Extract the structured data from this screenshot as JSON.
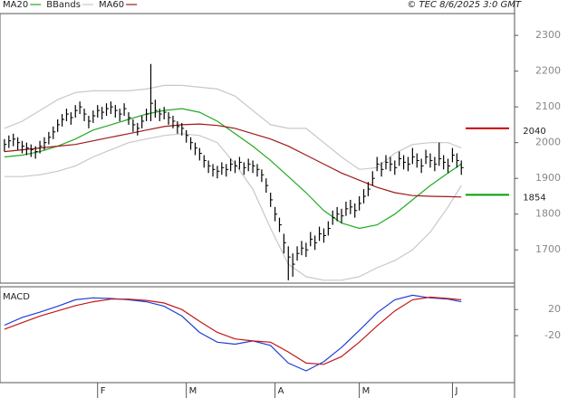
{
  "header": {
    "copyright": "© TEC 8/6/2025 3:0 GMT"
  },
  "chart_data": [
    {
      "type": "ohlc",
      "x": [
        0,
        1,
        2,
        3,
        4,
        5,
        6,
        7,
        8,
        9,
        10,
        11,
        12,
        13,
        14,
        15,
        16,
        17,
        18,
        19,
        20,
        21,
        22,
        23,
        24,
        25,
        26,
        27,
        28,
        29,
        30,
        31,
        32,
        33,
        34,
        35,
        36,
        37,
        38,
        39,
        40,
        41,
        42,
        43,
        44,
        45,
        46,
        47,
        48,
        49,
        50,
        51,
        52,
        53,
        54,
        55,
        56,
        57,
        58,
        59,
        60,
        61,
        62,
        63,
        64,
        65,
        66,
        67,
        68,
        69,
        70,
        71,
        72,
        73,
        74,
        75,
        76,
        77,
        78,
        79,
        80,
        81,
        82,
        83,
        84,
        85,
        86,
        87,
        88,
        89,
        90,
        91,
        92,
        93,
        94,
        95,
        96,
        97,
        98,
        99,
        100,
        101,
        102,
        103
      ],
      "high": [
        2010,
        2020,
        2025,
        2015,
        2005,
        2000,
        1995,
        1990,
        2005,
        2015,
        2030,
        2045,
        2065,
        2080,
        2095,
        2085,
        2105,
        2115,
        2095,
        2075,
        2090,
        2105,
        2100,
        2110,
        2115,
        2105,
        2095,
        2110,
        2085,
        2065,
        2055,
        2075,
        2095,
        2220,
        2120,
        2095,
        2100,
        2085,
        2075,
        2060,
        2055,
        2035,
        2015,
        2000,
        1985,
        1965,
        1950,
        1940,
        1935,
        1945,
        1940,
        1955,
        1950,
        1960,
        1945,
        1955,
        1950,
        1940,
        1925,
        1900,
        1860,
        1820,
        1790,
        1745,
        1710,
        1690,
        1710,
        1725,
        1720,
        1750,
        1740,
        1765,
        1760,
        1780,
        1810,
        1820,
        1815,
        1835,
        1840,
        1830,
        1850,
        1870,
        1890,
        1920,
        1960,
        1945,
        1965,
        1960,
        1950,
        1975,
        1965,
        1960,
        1985,
        1970,
        1955,
        1980,
        1970,
        1960,
        2000,
        1965,
        1955,
        1985,
        1970,
        1950
      ],
      "low": [
        1975,
        1985,
        1990,
        1980,
        1970,
        1965,
        1960,
        1955,
        1970,
        1980,
        1995,
        2010,
        2030,
        2045,
        2060,
        2050,
        2070,
        2080,
        2060,
        2040,
        2055,
        2070,
        2065,
        2075,
        2080,
        2070,
        2060,
        2075,
        2050,
        2030,
        2020,
        2040,
        2060,
        2060,
        2070,
        2060,
        2065,
        2050,
        2040,
        2025,
        2020,
        2000,
        1980,
        1965,
        1950,
        1930,
        1915,
        1905,
        1900,
        1910,
        1905,
        1920,
        1915,
        1925,
        1910,
        1920,
        1915,
        1905,
        1890,
        1860,
        1820,
        1780,
        1750,
        1690,
        1615,
        1625,
        1670,
        1685,
        1680,
        1710,
        1700,
        1725,
        1720,
        1740,
        1770,
        1780,
        1775,
        1795,
        1800,
        1790,
        1810,
        1830,
        1850,
        1880,
        1920,
        1905,
        1925,
        1920,
        1910,
        1935,
        1925,
        1920,
        1940,
        1930,
        1915,
        1940,
        1930,
        1920,
        1935,
        1925,
        1915,
        1945,
        1930,
        1910
      ],
      "close": [
        1995,
        2005,
        2010,
        2000,
        1990,
        1985,
        1980,
        1975,
        1990,
        2000,
        2015,
        2030,
        2050,
        2065,
        2080,
        2070,
        2090,
        2100,
        2080,
        2060,
        2075,
        2090,
        2085,
        2095,
        2100,
        2090,
        2080,
        2095,
        2070,
        2050,
        2040,
        2060,
        2080,
        2110,
        2090,
        2080,
        2085,
        2070,
        2060,
        2045,
        2040,
        2020,
        2000,
        1985,
        1970,
        1950,
        1935,
        1925,
        1920,
        1930,
        1925,
        1940,
        1935,
        1945,
        1930,
        1940,
        1935,
        1925,
        1910,
        1880,
        1840,
        1800,
        1770,
        1720,
        1680,
        1660,
        1690,
        1705,
        1700,
        1730,
        1720,
        1745,
        1740,
        1760,
        1790,
        1800,
        1795,
        1815,
        1820,
        1810,
        1830,
        1850,
        1870,
        1900,
        1940,
        1925,
        1945,
        1940,
        1930,
        1955,
        1945,
        1940,
        1960,
        1950,
        1935,
        1960,
        1950,
        1940,
        1955,
        1945,
        1935,
        1965,
        1950,
        1930
      ],
      "color": "#000000",
      "overlays": {
        "x": [
          0,
          4,
          8,
          12,
          16,
          20,
          24,
          28,
          32,
          36,
          40,
          44,
          48,
          52,
          56,
          60,
          64,
          68,
          72,
          76,
          80,
          84,
          88,
          92,
          96,
          100,
          103
        ],
        "series": [
          {
            "name": "MA20",
            "color": "#22aa22",
            "values": [
              1960,
              1965,
              1975,
              1990,
              2010,
              2035,
              2050,
              2065,
              2080,
              2090,
              2095,
              2085,
              2060,
              2025,
              1990,
              1950,
              1905,
              1860,
              1810,
              1775,
              1760,
              1770,
              1800,
              1840,
              1880,
              1915,
              1940
            ]
          },
          {
            "name": "BBands",
            "color": "#c8c8c8",
            "upper": [
              2040,
              2060,
              2090,
              2120,
              2140,
              2145,
              2145,
              2145,
              2150,
              2160,
              2160,
              2155,
              2150,
              2130,
              2090,
              2050,
              2040,
              2040,
              2000,
              1960,
              1925,
              1930,
              1970,
              1995,
              2000,
              2000,
              1985
            ],
            "lower": [
              1905,
              1905,
              1910,
              1920,
              1935,
              1960,
              1980,
              2000,
              2010,
              2020,
              2025,
              2020,
              2000,
              1940,
              1870,
              1760,
              1660,
              1625,
              1615,
              1615,
              1625,
              1650,
              1670,
              1700,
              1750,
              1820,
              1880
            ]
          },
          {
            "name": "MA60",
            "color": "#a01818",
            "values": [
              1975,
              1980,
              1985,
              1990,
              1995,
              2005,
              2015,
              2025,
              2035,
              2045,
              2050,
              2052,
              2048,
              2040,
              2025,
              2010,
              1990,
              1965,
              1940,
              1915,
              1895,
              1875,
              1860,
              1852,
              1850,
              1849,
              1848
            ]
          }
        ]
      },
      "annotations": [
        {
          "value": 2040,
          "label": "2040",
          "color": "#cc0000"
        },
        {
          "value": 1854,
          "label": "1854",
          "color": "#00a000"
        }
      ],
      "xlim": [
        -1,
        115
      ],
      "ylim": [
        1607,
        2361
      ],
      "yticks": [
        1700,
        1800,
        1900,
        2000,
        2100,
        2200,
        2300
      ]
    },
    {
      "type": "line",
      "title": "MACD",
      "x": [
        0,
        4,
        8,
        12,
        16,
        20,
        24,
        28,
        32,
        36,
        40,
        44,
        48,
        52,
        56,
        60,
        64,
        68,
        72,
        76,
        80,
        84,
        88,
        92,
        96,
        100,
        103
      ],
      "series": [
        {
          "color": "#1f3fd8",
          "values": [
            -4,
            8,
            16,
            25,
            35,
            38,
            37,
            35,
            32,
            25,
            10,
            -15,
            -30,
            -33,
            -28,
            -35,
            -62,
            -74,
            -60,
            -38,
            -12,
            15,
            35,
            42,
            38,
            36,
            32
          ]
        },
        {
          "color": "#c01818",
          "values": [
            -10,
            0,
            10,
            18,
            26,
            32,
            36,
            36,
            34,
            30,
            20,
            2,
            -15,
            -25,
            -28,
            -30,
            -45,
            -62,
            -64,
            -52,
            -30,
            -5,
            18,
            35,
            39,
            37,
            35
          ]
        }
      ],
      "xlim": [
        -1,
        115
      ],
      "ylim": [
        -92,
        55
      ],
      "yticks": [
        20,
        -20
      ],
      "xticks": [
        {
          "value": 21,
          "label": "F"
        },
        {
          "value": 41,
          "label": "M"
        },
        {
          "value": 61,
          "label": "A"
        },
        {
          "value": 80,
          "label": "M"
        },
        {
          "value": 101,
          "label": "J"
        }
      ]
    }
  ]
}
